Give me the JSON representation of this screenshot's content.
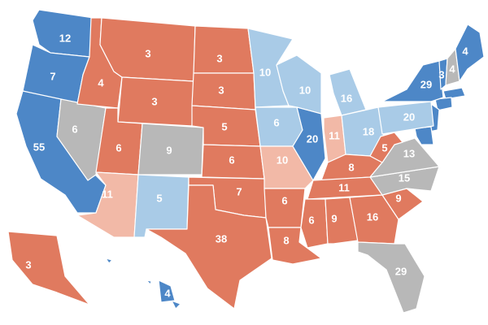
{
  "regions": [
    {
      "label": 12,
      "color": "#4d87c7"
    },
    {
      "label": 7,
      "color": "#4d87c7"
    },
    {
      "label": 55,
      "color": "#4d87c7"
    },
    {
      "label": 6,
      "color": "#b8b8b8"
    },
    {
      "label": 4,
      "color": "#e07a5f"
    },
    {
      "label": 3,
      "color": "#e07a5f"
    },
    {
      "label": 3,
      "color": "#e07a5f"
    },
    {
      "label": 6,
      "color": "#e07a5f"
    },
    {
      "label": 9,
      "color": "#b8b8b8"
    },
    {
      "label": 11,
      "color": "#f2b9a7"
    },
    {
      "label": 5,
      "color": "#a9cbe7"
    },
    {
      "label": 3,
      "color": "#e07a5f"
    },
    {
      "label": 3,
      "color": "#e07a5f"
    },
    {
      "label": 5,
      "color": "#e07a5f"
    },
    {
      "label": 6,
      "color": "#e07a5f"
    },
    {
      "label": 7,
      "color": "#e07a5f"
    },
    {
      "label": 38,
      "color": "#e07a5f"
    },
    {
      "label": 10,
      "color": "#a9cbe7"
    },
    {
      "label": 6,
      "color": "#a9cbe7"
    },
    {
      "label": 10,
      "color": "#f2b9a7"
    },
    {
      "label": 6,
      "color": "#e07a5f"
    },
    {
      "label": 8,
      "color": "#e07a5f"
    },
    {
      "label": 10,
      "color": "#a9cbe7"
    },
    {
      "label": 20,
      "color": "#4d87c7"
    },
    {
      "label": 16,
      "color": "#a9cbe7"
    },
    {
      "label": 11,
      "color": "#f2b9a7"
    },
    {
      "label": 18,
      "color": "#a9cbe7"
    },
    {
      "label": 8,
      "color": "#e07a5f"
    },
    {
      "label": 11,
      "color": "#e07a5f"
    },
    {
      "label": 6,
      "color": "#e07a5f"
    },
    {
      "label": 9,
      "color": "#e07a5f"
    },
    {
      "label": 16,
      "color": "#e07a5f"
    },
    {
      "label": 9,
      "color": "#e07a5f"
    },
    {
      "label": 15,
      "color": "#b8b8b8"
    },
    {
      "label": 13,
      "color": "#b8b8b8"
    },
    {
      "label": 5,
      "color": "#e07a5f"
    },
    {
      "label": 20,
      "color": "#a9cbe7"
    },
    {
      "label": 29,
      "color": "#4d87c7"
    },
    {
      "label": 3,
      "color": "#4d87c7"
    },
    {
      "label": 4,
      "color": "#b8b8b8"
    },
    {
      "label": 4,
      "color": "#4d87c7"
    },
    {
      "label": 29,
      "color": "#b8b8b8"
    },
    {
      "label": 3,
      "color": "#e07a5f"
    },
    {
      "label": 4,
      "color": "#4d87c7"
    }
  ]
}
